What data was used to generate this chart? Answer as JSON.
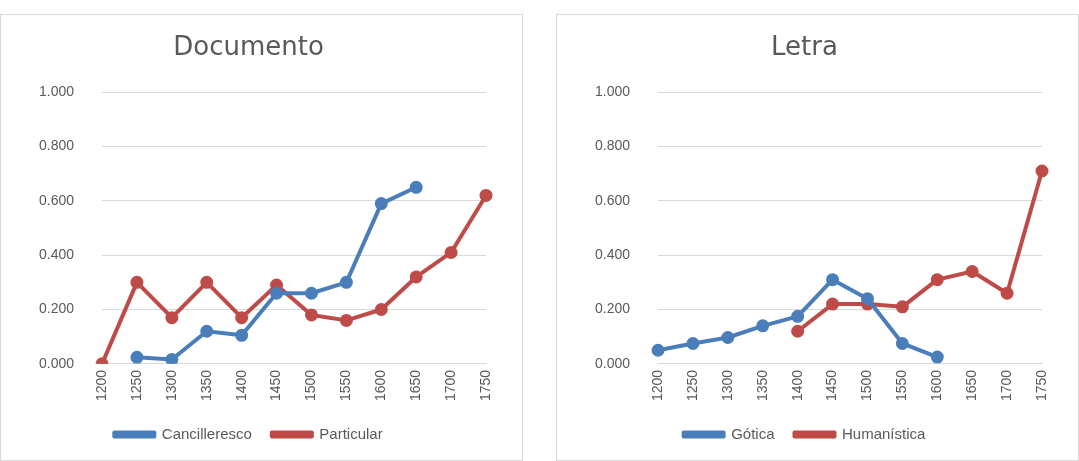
{
  "chart_data": [
    {
      "type": "line",
      "title": "Documento",
      "categories": [
        "1200",
        "1250",
        "1300",
        "1350",
        "1400",
        "1450",
        "1500",
        "1550",
        "1600",
        "1650",
        "1700",
        "1750"
      ],
      "series": [
        {
          "name": "Cancilleresco",
          "color": "#4a7ebb",
          "values": [
            null,
            0.024,
            0.016,
            0.12,
            0.105,
            0.26,
            0.26,
            0.3,
            0.59,
            0.65,
            null,
            null
          ]
        },
        {
          "name": "Particular",
          "color": "#be4b48",
          "values": [
            0,
            0.3,
            0.17,
            0.3,
            0.17,
            0.29,
            0.18,
            0.16,
            0.2,
            0.32,
            0.41,
            0.62
          ]
        }
      ],
      "ylim": [
        0,
        1
      ],
      "yticks": [
        {
          "value": 0,
          "label": "0.000"
        },
        {
          "value": 0.2,
          "label": "0.200"
        },
        {
          "value": 0.4,
          "label": "0.400"
        },
        {
          "value": 0.6,
          "label": "0.600"
        },
        {
          "value": 0.8,
          "label": "0.800"
        },
        {
          "value": 1,
          "label": "1.000"
        }
      ],
      "grid": "y",
      "legend": "bottom",
      "marker": "circle",
      "line_style": "solid"
    },
    {
      "type": "line",
      "title": "Letra",
      "categories": [
        "1200",
        "1250",
        "1300",
        "1350",
        "1400",
        "1450",
        "1500",
        "1550",
        "1600",
        "1650",
        "1700",
        "1750"
      ],
      "series": [
        {
          "name": "Gótica",
          "color": "#4a7ebb",
          "values": [
            0.05,
            0.075,
            0.097,
            0.14,
            0.175,
            0.31,
            0.24,
            0.075,
            0.025,
            null,
            null,
            null
          ]
        },
        {
          "name": "Humanística",
          "color": "#be4b48",
          "values": [
            null,
            null,
            null,
            null,
            0.12,
            0.22,
            0.22,
            0.21,
            0.31,
            0.34,
            0.26,
            0.71
          ]
        }
      ],
      "ylim": [
        0,
        1
      ],
      "yticks": [
        {
          "value": 0,
          "label": "0.000"
        },
        {
          "value": 0.2,
          "label": "0.200"
        },
        {
          "value": 0.4,
          "label": "0.400"
        },
        {
          "value": 0.6,
          "label": "0.600"
        },
        {
          "value": 0.8,
          "label": "0.800"
        },
        {
          "value": 1,
          "label": "1.000"
        }
      ],
      "grid": "y",
      "legend": "bottom",
      "marker": "circle",
      "line_style": "solid"
    }
  ]
}
